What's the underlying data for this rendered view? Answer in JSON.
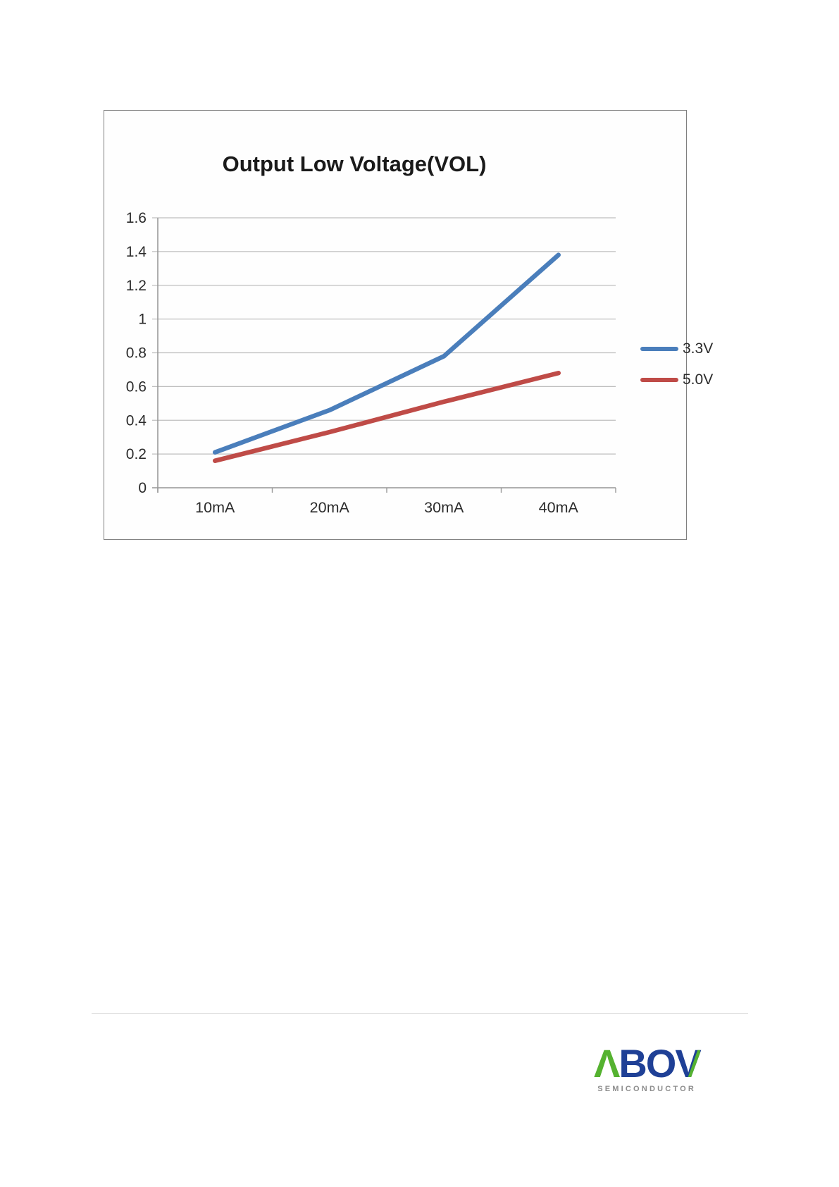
{
  "chart_data": {
    "type": "line",
    "title": "Output Low Voltage(VOL)",
    "xlabel": "",
    "ylabel": "",
    "categories": [
      "10mA",
      "20mA",
      "30mA",
      "40mA"
    ],
    "series": [
      {
        "name": "3.3V",
        "color": "#4A7EBB",
        "values": [
          0.21,
          0.46,
          0.78,
          1.38
        ]
      },
      {
        "name": "5.0V",
        "color": "#BF4B47",
        "values": [
          0.16,
          0.33,
          0.51,
          0.68
        ]
      }
    ],
    "ylim": [
      0,
      1.6
    ],
    "y_ticks": [
      "0",
      "0.2",
      "0.4",
      "0.6",
      "0.8",
      "1",
      "1.2",
      "1.4",
      "1.6"
    ],
    "grid": true,
    "legend_position": "right"
  },
  "colors": {
    "gridline": "#bfbfbf",
    "axis": "#9a9a9a",
    "tick_text": "#2b2b2b",
    "frame_border": "#7f7f7f"
  },
  "footer": {
    "logo": {
      "mark": "Λ",
      "text": "BO",
      "v": "V",
      "subtext": "SEMICONDUCTOR",
      "green": "#55B230",
      "blue": "#1F4096",
      "subtext_color": "#8c8c8c"
    }
  }
}
